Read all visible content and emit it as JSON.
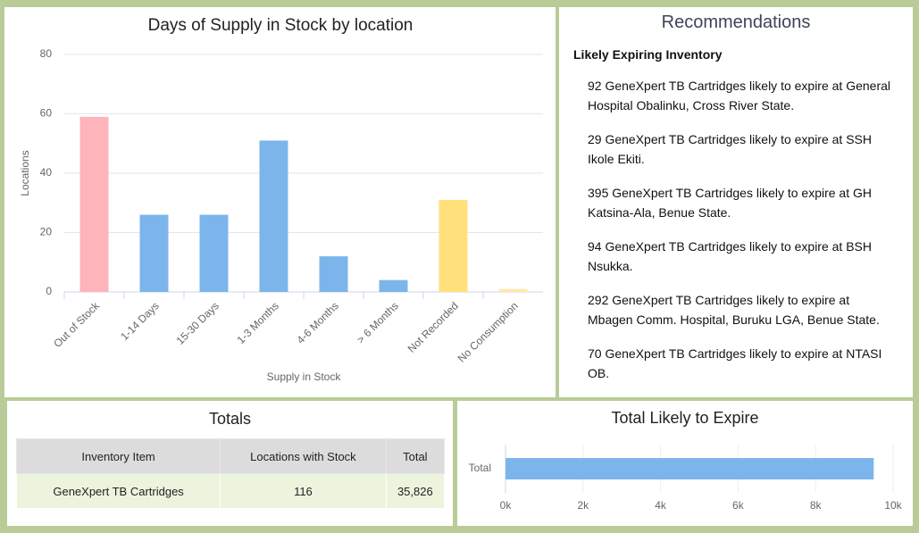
{
  "chart_data": [
    {
      "type": "bar",
      "title": "Days of Supply in Stock by location",
      "x_label": "Supply in Stock",
      "y_label": "Locations",
      "categories": [
        "Out of Stock",
        "1-14 Days",
        "15-30 Days",
        "1-3 Months",
        "4-6 Months",
        "> 6 Months",
        "Not Recorded",
        "No Consumption"
      ],
      "values": [
        59,
        26,
        26,
        51,
        12,
        4,
        31,
        1
      ],
      "colors": [
        "#ffb3ba",
        "#7cb5ec",
        "#7cb5ec",
        "#7cb5ec",
        "#7cb5ec",
        "#7cb5ec",
        "#ffe07a",
        "#ffe9a8"
      ],
      "ylim": [
        0,
        80
      ],
      "yticks": [
        0,
        20,
        40,
        60,
        80
      ],
      "grid": true
    },
    {
      "type": "hbar",
      "title": "Total Likely to Expire",
      "categories": [
        "Total"
      ],
      "values": [
        9500
      ],
      "color": "#7cb5ec",
      "xlim": [
        0,
        10000
      ],
      "xticks": [
        {
          "value": 0,
          "label": "0k"
        },
        {
          "value": 2000,
          "label": "2k"
        },
        {
          "value": 4000,
          "label": "4k"
        },
        {
          "value": 6000,
          "label": "6k"
        },
        {
          "value": 8000,
          "label": "8k"
        },
        {
          "value": 10000,
          "label": "10k"
        }
      ],
      "grid": true
    }
  ],
  "recommendations": {
    "title": "Recommendations",
    "subtitle": "Likely Expiring Inventory",
    "items": [
      "92 GeneXpert TB Cartridges likely to expire at General Hospital Obalinku, Cross River State.",
      "29 GeneXpert TB Cartridges likely to expire at SSH Ikole Ekiti.",
      "395 GeneXpert TB Cartridges likely to expire at GH Katsina-Ala, Benue State.",
      "94 GeneXpert TB Cartridges likely to expire at BSH Nsukka.",
      "292 GeneXpert TB Cartridges likely to expire at Mbagen Comm. Hospital, Buruku LGA, Benue State.",
      "70 GeneXpert TB Cartridges likely to expire at NTASI OB."
    ]
  },
  "totals": {
    "title": "Totals",
    "header": [
      "Inventory Item",
      "Locations with Stock",
      "Total"
    ],
    "rows": [
      [
        "GeneXpert TB Cartridges",
        116,
        "35,826"
      ]
    ]
  }
}
